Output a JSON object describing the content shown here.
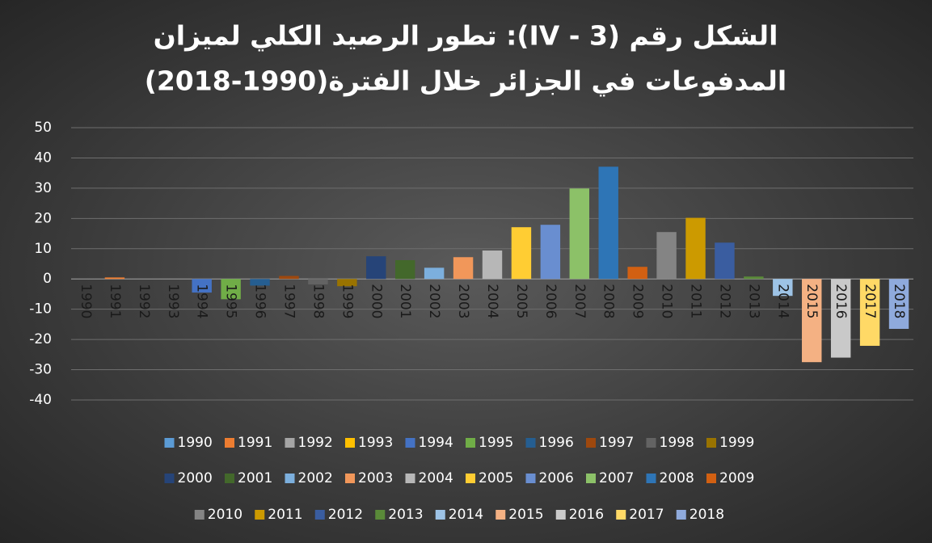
{
  "chart_data": {
    "type": "bar",
    "title": [
      "الشكل رقم (IV - 3): تطور الرصيد الكلي لميزان",
      "المدفوعات في الجزائر خلال الفترة(1990-2018)"
    ],
    "categories": [
      "1990",
      "1991",
      "1992",
      "1993",
      "1994",
      "1995",
      "1996",
      "1997",
      "1998",
      "1999",
      "2000",
      "2001",
      "2002",
      "2003",
      "2004",
      "2005",
      "2006",
      "2007",
      "2008",
      "2009",
      "2010",
      "2011",
      "2012",
      "2013",
      "2014",
      "2015",
      "2016",
      "2017",
      "2018"
    ],
    "values": [
      0,
      0.5,
      0,
      0,
      -4.5,
      -6.7,
      -2.2,
      1,
      -1.8,
      -2.4,
      7.5,
      6.2,
      3.7,
      7.2,
      9.4,
      17.1,
      17.9,
      29.9,
      37.1,
      4.0,
      15.5,
      20.2,
      12.0,
      0.8,
      -5.6,
      -27.5,
      -26.0,
      -22.1,
      -16.5
    ],
    "colors": [
      "#5b9bd5",
      "#ed7d31",
      "#a5a5a5",
      "#ffc000",
      "#4472c4",
      "#70ad47",
      "#255e91",
      "#9e480e",
      "#636363",
      "#997300",
      "#264478",
      "#43682b",
      "#7cafdd",
      "#f1975a",
      "#b7b7b7",
      "#ffcd33",
      "#698ed0",
      "#8cc168",
      "#2e75b6",
      "#d26012",
      "#848484",
      "#cc9a00",
      "#3a5da0",
      "#5a8a39",
      "#9dc3e6",
      "#f4b183",
      "#c9c9c9",
      "#ffd966",
      "#8faadc"
    ],
    "ylim": [
      -40,
      50
    ],
    "yticks": [
      -40,
      -30,
      -20,
      -10,
      0,
      10,
      20,
      30,
      40,
      50
    ],
    "grid": true,
    "legend": "bottom"
  }
}
